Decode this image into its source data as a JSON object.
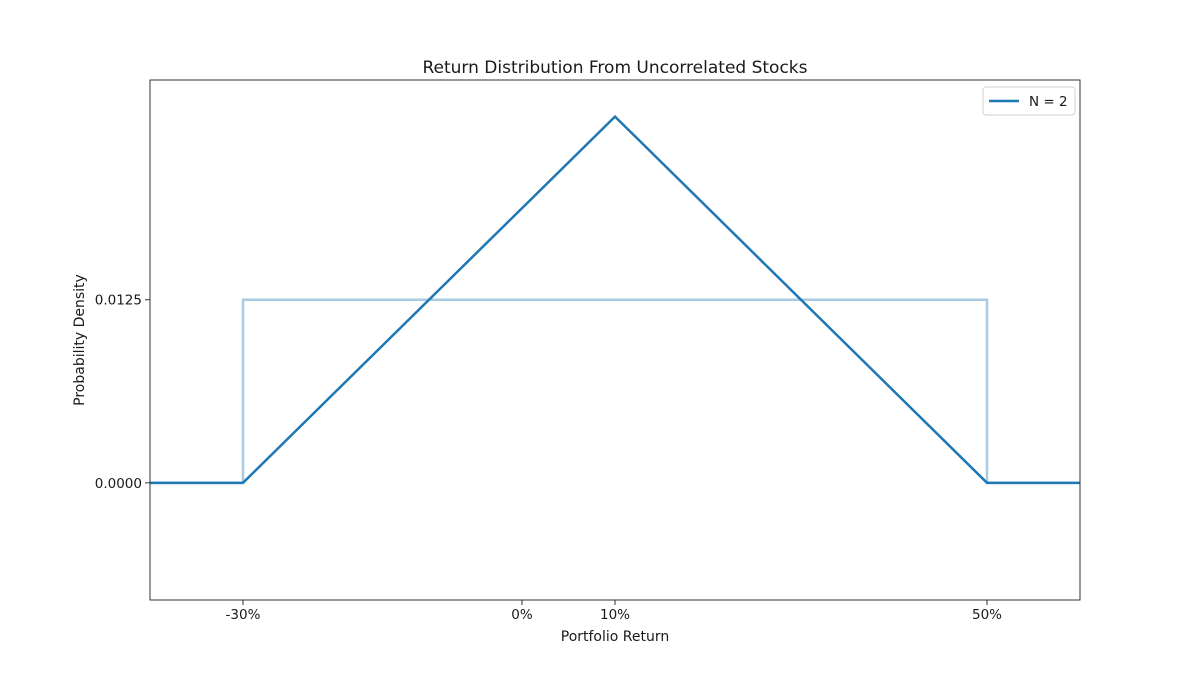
{
  "chart_data": {
    "type": "line",
    "title": "Return Distribution From Uncorrelated Stocks",
    "xlabel": "Portfolio Return",
    "ylabel": "Probability Density",
    "xlim": [
      -0.4,
      0.6
    ],
    "ylim": [
      -0.008,
      0.0275
    ],
    "xticks": [
      -0.3,
      0.0,
      0.1,
      0.5
    ],
    "xtick_labels": [
      "-30%",
      "0%",
      "10%",
      "50%"
    ],
    "yticks": [
      0.0,
      0.0125
    ],
    "ytick_labels": [
      "0.0000",
      "0.0125"
    ],
    "grid": false,
    "legend": {
      "position": "top-right",
      "entries": [
        "N = 2"
      ]
    },
    "series": [
      {
        "name": "N = 2",
        "color": "#1f77b4",
        "x": [
          -0.4,
          -0.3,
          0.1,
          0.5,
          0.6
        ],
        "y": [
          0.0,
          0.0,
          0.025,
          0.0,
          0.0
        ]
      },
      {
        "color": "#a6cbe3",
        "x": [
          -0.4,
          -0.3,
          -0.3,
          0.5,
          0.5,
          0.6
        ],
        "y": [
          0.0,
          0.0,
          0.0125,
          0.0125,
          0.0,
          0.0
        ]
      }
    ]
  }
}
